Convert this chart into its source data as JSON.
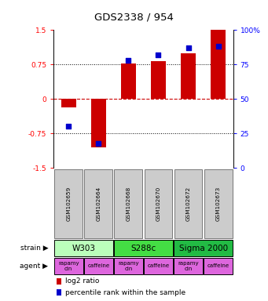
{
  "title": "GDS2338 / 954",
  "samples": [
    "GSM102659",
    "GSM102664",
    "GSM102668",
    "GSM102670",
    "GSM102672",
    "GSM102673"
  ],
  "log2_ratio": [
    -0.18,
    -1.05,
    0.78,
    0.82,
    1.0,
    1.5
  ],
  "percentile": [
    30,
    18,
    78,
    82,
    87,
    88
  ],
  "ylim_left": [
    -1.5,
    1.5
  ],
  "ylim_right": [
    0,
    100
  ],
  "yticks_left": [
    -1.5,
    -0.75,
    0,
    0.75,
    1.5
  ],
  "yticks_right": [
    0,
    25,
    50,
    75,
    100
  ],
  "ytick_labels_left": [
    "-1.5",
    "-0.75",
    "0",
    "0.75",
    "1.5"
  ],
  "ytick_labels_right": [
    "0",
    "25",
    "50",
    "75",
    "100%"
  ],
  "dotted_lines_black": [
    -0.75,
    0.75
  ],
  "zero_line_y": 0,
  "bar_color": "#cc0000",
  "dot_color": "#0000cc",
  "zero_line_color": "#cc0000",
  "strains": [
    {
      "label": "W303",
      "start": 0,
      "end": 2,
      "color": "#bbffbb"
    },
    {
      "label": "S288c",
      "start": 2,
      "end": 4,
      "color": "#44dd44"
    },
    {
      "label": "Sigma 2000",
      "start": 4,
      "end": 6,
      "color": "#22bb44"
    }
  ],
  "agents": [
    {
      "label": "rapamycin",
      "start": 0,
      "end": 1,
      "color": "#dd66dd"
    },
    {
      "label": "caffeine",
      "start": 1,
      "end": 2,
      "color": "#dd66dd"
    },
    {
      "label": "rapamycin",
      "start": 2,
      "end": 3,
      "color": "#dd66dd"
    },
    {
      "label": "caffeine",
      "start": 3,
      "end": 4,
      "color": "#dd66dd"
    },
    {
      "label": "rapamycin",
      "start": 4,
      "end": 5,
      "color": "#dd66dd"
    },
    {
      "label": "caffeine",
      "start": 5,
      "end": 6,
      "color": "#dd66dd"
    }
  ],
  "bg_color": "#ffffff",
  "sample_bg_color": "#cccccc",
  "bar_width": 0.5
}
